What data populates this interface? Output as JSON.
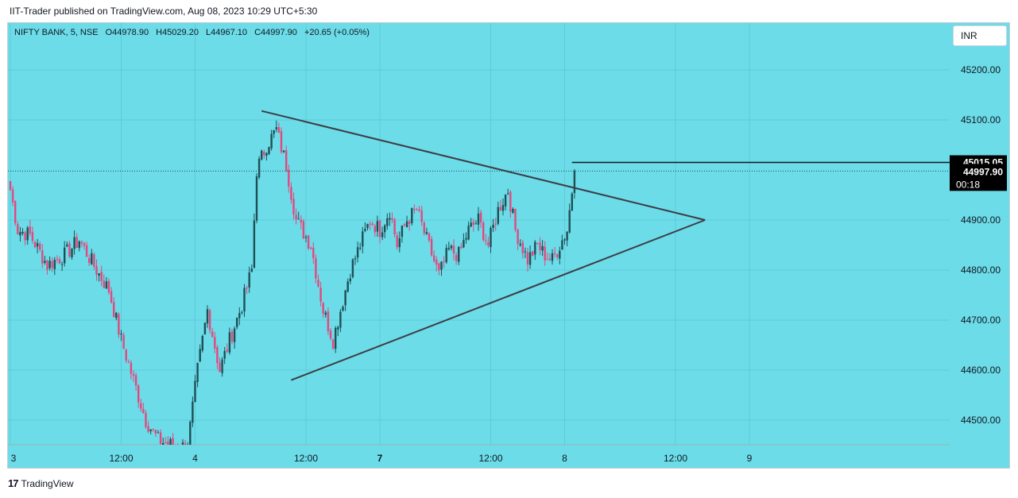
{
  "publisher": "IIT-Trader published on TradingView.com, Aug 08, 2023 10:29 UTC+5:30",
  "symbol_bar": {
    "name": "NIFTY BANK, 5, NSE",
    "open": "O44978.90",
    "high": "H45029.20",
    "low": "L44967.10",
    "close": "C44997.90",
    "change": "+20.65 (+0.05%)"
  },
  "currency": "INR",
  "footer": {
    "brand": "TradingView",
    "logo": "17"
  },
  "colors": {
    "background": "#6bdce8",
    "up": "#1f4f55",
    "down": "#e5477d",
    "trendline": "#3d3d46"
  },
  "chart_data": {
    "type": "candlestick",
    "ylim": [
      44445,
      45310
    ],
    "y_ticks": [
      "45200.00",
      "45100.00",
      "44900.00",
      "44800.00",
      "44700.00",
      "44600.00",
      "44500.00"
    ],
    "x_ticks": [
      {
        "label": "3",
        "bar": 0,
        "bold": false
      },
      {
        "label": "12:00",
        "bar": 45,
        "bold": false
      },
      {
        "label": "4",
        "bar": 75,
        "bold": false
      },
      {
        "label": "12:00",
        "bar": 120,
        "bold": false
      },
      {
        "label": "7",
        "bar": 150,
        "bold": true
      },
      {
        "label": "12:00",
        "bar": 195,
        "bold": false
      },
      {
        "label": "8",
        "bar": 225,
        "bold": false
      },
      {
        "label": "12:00",
        "bar": 270,
        "bold": false
      },
      {
        "label": "9",
        "bar": 300,
        "bold": false
      }
    ],
    "price_labels": {
      "level": "45015.05",
      "last": "44997.90",
      "countdown": "00:18"
    },
    "horizontal_line": {
      "price": 45015.05,
      "from_bar": 228,
      "to_bar": 312
    },
    "last_price": 44997.9,
    "trendlines": [
      {
        "from": {
          "bar": 102,
          "price": 45118
        },
        "to": {
          "bar": 282,
          "price": 44900
        }
      },
      {
        "from": {
          "bar": 114,
          "price": 44580
        },
        "to": {
          "bar": 282,
          "price": 44900
        }
      }
    ],
    "anchors": [
      [
        0,
        44960
      ],
      [
        3,
        44880
      ],
      [
        8,
        44870
      ],
      [
        15,
        44810
      ],
      [
        22,
        44830
      ],
      [
        28,
        44860
      ],
      [
        35,
        44800
      ],
      [
        40,
        44760
      ],
      [
        45,
        44660
      ],
      [
        50,
        44580
      ],
      [
        55,
        44500
      ],
      [
        60,
        44460
      ],
      [
        68,
        44445
      ],
      [
        72,
        44450
      ],
      [
        76,
        44600
      ],
      [
        80,
        44720
      ],
      [
        85,
        44600
      ],
      [
        89,
        44660
      ],
      [
        94,
        44730
      ],
      [
        98,
        44800
      ],
      [
        100,
        45000
      ],
      [
        104,
        45050
      ],
      [
        108,
        45080
      ],
      [
        112,
        45010
      ],
      [
        116,
        44900
      ],
      [
        122,
        44850
      ],
      [
        127,
        44720
      ],
      [
        131,
        44660
      ],
      [
        134,
        44720
      ],
      [
        138,
        44800
      ],
      [
        142,
        44850
      ],
      [
        146,
        44900
      ],
      [
        150,
        44880
      ],
      [
        154,
        44920
      ],
      [
        157,
        44850
      ],
      [
        161,
        44900
      ],
      [
        165,
        44920
      ],
      [
        169,
        44860
      ],
      [
        174,
        44790
      ],
      [
        178,
        44840
      ],
      [
        182,
        44830
      ],
      [
        186,
        44880
      ],
      [
        190,
        44900
      ],
      [
        194,
        44850
      ],
      [
        198,
        44920
      ],
      [
        202,
        44960
      ],
      [
        205,
        44880
      ],
      [
        210,
        44820
      ],
      [
        214,
        44850
      ],
      [
        217,
        44830
      ],
      [
        220,
        44820
      ],
      [
        223,
        44850
      ],
      [
        226,
        44880
      ],
      [
        229,
        44997.9
      ]
    ]
  }
}
